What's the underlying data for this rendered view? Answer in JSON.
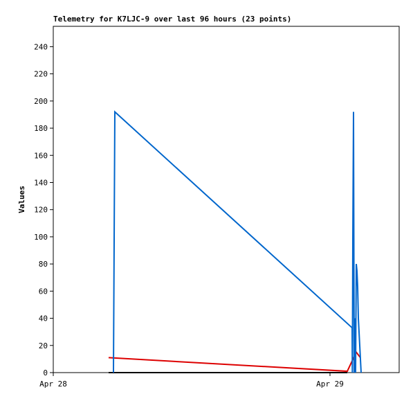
{
  "chart_data": {
    "type": "line",
    "title": "Telemetry for K7LJC-9 over last 96 hours (23 points)",
    "ylabel": "Values",
    "xlim": [
      0,
      30
    ],
    "xticks": [
      {
        "value": 0,
        "label": "Apr 28"
      },
      {
        "value": 24,
        "label": "Apr 29"
      }
    ],
    "ylim": [
      0,
      255
    ],
    "yticks": [
      0,
      20,
      40,
      60,
      80,
      100,
      120,
      140,
      160,
      180,
      200,
      220,
      240
    ],
    "series": [
      {
        "color": "#000000",
        "x": [
          4.8,
          25.5
        ],
        "values": [
          0,
          0
        ]
      },
      {
        "color": "#dd0000",
        "x": [
          4.8,
          25.5,
          26.28,
          26.64
        ],
        "values": [
          11,
          1,
          15,
          11
        ]
      },
      {
        "color": "#0066cc",
        "x": [
          5.22,
          5.28,
          5.34,
          25.92,
          25.94,
          25.98,
          26.04,
          26.1,
          26.16,
          26.22,
          26.28,
          26.34,
          26.4,
          26.46,
          26.58,
          26.7
        ],
        "values": [
          0,
          97,
          192,
          33,
          0,
          97,
          192,
          0,
          40,
          0,
          80,
          75,
          63,
          40,
          20,
          0
        ]
      }
    ]
  }
}
